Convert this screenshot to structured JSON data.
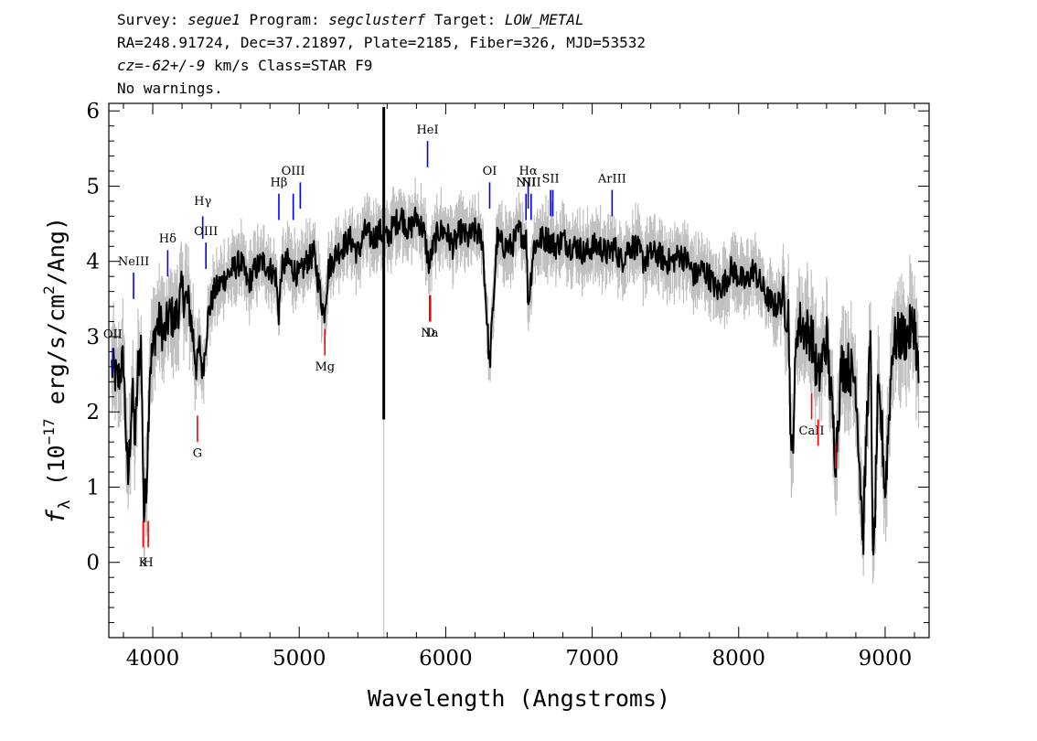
{
  "header": {
    "line1": {
      "survey_label": "Survey:",
      "survey": "segue1",
      "program_label": "Program:",
      "program": "segclusterf",
      "target_label": "Target:",
      "target": "LOW_METAL"
    },
    "line2": "RA=248.91724, Dec=37.21897, Plate=2185, Fiber=326, MJD=53532",
    "line3": {
      "cz": "cz=-62+/-9",
      "rest": " km/s Class=STAR F9"
    },
    "line4": "No warnings."
  },
  "chart_data": {
    "type": "line",
    "xlabel": "Wavelength (Angstroms)",
    "ylabel_parts": {
      "f": "f",
      "sub": "λ",
      "open": " (10",
      "exp": "−17",
      "mid": " erg/s/cm",
      "exp2": "2",
      "close": "/Ang)"
    },
    "xlim": [
      3700,
      9300
    ],
    "ylim": [
      -1.0,
      6.1
    ],
    "x_ticks": [
      4000,
      5000,
      6000,
      7000,
      8000,
      9000
    ],
    "x_tick_labels": [
      "4000",
      "5000",
      "6000",
      "7000",
      "8000",
      "9000"
    ],
    "y_ticks": [
      0,
      1,
      2,
      3,
      4,
      5,
      6
    ],
    "y_tick_labels": [
      "0",
      "1",
      "2",
      "3",
      "4",
      "5",
      "6"
    ],
    "colors": {
      "spectrum": "#000000",
      "error": "#bfbfbf",
      "emission": "#0000ff",
      "absorption": "#ff0000",
      "model": "#000000"
    },
    "series": [
      {
        "role": "spectrum",
        "x": [
          3720,
          3760,
          3800,
          3830,
          3860,
          3880,
          3900,
          3920,
          3940,
          3960,
          3980,
          4000,
          4020,
          4050,
          4080,
          4100,
          4120,
          4150,
          4200,
          4250,
          4300,
          4320,
          4340,
          4380,
          4420,
          4460,
          4500,
          4550,
          4600,
          4650,
          4700,
          4750,
          4800,
          4840,
          4860,
          4880,
          4920,
          4960,
          5000,
          5050,
          5100,
          5150,
          5170,
          5200,
          5250,
          5300,
          5350,
          5400,
          5450,
          5500,
          5550,
          5600,
          5650,
          5700,
          5750,
          5800,
          5850,
          5890,
          5900,
          5950,
          6000,
          6050,
          6100,
          6150,
          6200,
          6250,
          6300,
          6350,
          6400,
          6450,
          6500,
          6550,
          6563,
          6600,
          6650,
          6700,
          6750,
          6800,
          6850,
          6900,
          6950,
          7000,
          7050,
          7100,
          7150,
          7200,
          7250,
          7300,
          7350,
          7400,
          7450,
          7500,
          7550,
          7600,
          7650,
          7700,
          7750,
          7800,
          7850,
          7900,
          7950,
          8000,
          8050,
          8100,
          8150,
          8200,
          8250,
          8300,
          8340,
          8360,
          8400,
          8450,
          8500,
          8542,
          8600,
          8662,
          8700,
          8750,
          8800,
          8850,
          8880,
          8900,
          8920,
          8950,
          8980,
          9000,
          9050,
          9100,
          9150,
          9200,
          9230
        ],
        "y": [
          2.6,
          2.4,
          2.7,
          1.0,
          2.3,
          1.6,
          2.6,
          2.9,
          0.6,
          1.2,
          2.6,
          2.8,
          3.1,
          3.2,
          3.0,
          3.2,
          3.3,
          3.2,
          3.6,
          3.4,
          2.6,
          2.9,
          2.5,
          3.3,
          3.6,
          3.7,
          3.8,
          3.9,
          4.0,
          3.7,
          3.9,
          4.0,
          3.9,
          3.8,
          3.3,
          3.9,
          4.0,
          3.9,
          3.8,
          4.0,
          4.1,
          3.5,
          3.3,
          3.9,
          4.1,
          4.2,
          4.3,
          4.1,
          4.4,
          4.3,
          4.4,
          4.3,
          4.5,
          4.6,
          4.4,
          4.6,
          4.4,
          3.9,
          4.1,
          4.4,
          4.4,
          4.2,
          4.4,
          4.3,
          4.4,
          4.3,
          2.6,
          4.3,
          4.2,
          4.2,
          4.4,
          4.3,
          3.4,
          4.2,
          4.3,
          4.3,
          4.2,
          4.3,
          4.2,
          4.2,
          4.1,
          4.2,
          4.2,
          4.1,
          4.2,
          4.0,
          4.2,
          4.2,
          4.0,
          4.1,
          4.1,
          4.0,
          4.0,
          4.1,
          4.0,
          3.8,
          3.9,
          3.8,
          3.6,
          3.7,
          3.9,
          3.8,
          3.7,
          3.9,
          3.7,
          3.5,
          3.4,
          3.5,
          3.3,
          1.2,
          3.2,
          3.1,
          3.0,
          2.4,
          3.0,
          1.4,
          2.6,
          2.6,
          2.4,
          0.3,
          2.2,
          2.8,
          -0.2,
          2.2,
          1.7,
          0.9,
          2.9,
          3.0,
          3.0,
          3.2,
          2.4
        ]
      }
    ],
    "sky_line": {
      "x": 5577,
      "y_top": 6.05,
      "y_bottom": 1.9
    },
    "emission_lines": [
      {
        "label": "OII",
        "x": 3727,
        "y1": 2.5,
        "y2": 2.85,
        "ly": 2.98
      },
      {
        "label": "NeIII",
        "x": 3869,
        "y1": 3.5,
        "y2": 3.85,
        "ly": 3.95
      },
      {
        "label": "Hδ",
        "x": 4102,
        "y1": 3.8,
        "y2": 4.15,
        "ly": 4.25
      },
      {
        "label": "Hγ",
        "x": 4341,
        "y1": 4.3,
        "y2": 4.6,
        "ly": 4.75
      },
      {
        "label": "OIII",
        "x": 4363,
        "y1": 3.9,
        "y2": 4.25,
        "ly": 4.35
      },
      {
        "label": "Hβ",
        "x": 4861,
        "y1": 4.55,
        "y2": 4.9,
        "ly": 5.0
      },
      {
        "label": "OIII",
        "x": 4959,
        "y1": 4.55,
        "y2": 4.9,
        "ly": 5.15
      },
      {
        "label": "",
        "x": 5007,
        "y1": 4.7,
        "y2": 5.05,
        "ly": 5.15
      },
      {
        "label": "HeI",
        "x": 5876,
        "y1": 5.25,
        "y2": 5.6,
        "ly": 5.7
      },
      {
        "label": "OI",
        "x": 6300,
        "y1": 4.7,
        "y2": 5.05,
        "ly": 5.15
      },
      {
        "label": "NII",
        "x": 6548,
        "y1": 4.55,
        "y2": 4.9,
        "ly": 5.0
      },
      {
        "label": "Hα",
        "x": 6563,
        "y1": 4.7,
        "y2": 5.05,
        "ly": 5.15
      },
      {
        "label": "NII",
        "x": 6583,
        "y1": 4.55,
        "y2": 4.9,
        "ly": 5.0
      },
      {
        "label": "SII",
        "x": 6716,
        "y1": 4.6,
        "y2": 4.95,
        "ly": 5.05
      },
      {
        "label": "",
        "x": 6731,
        "y1": 4.6,
        "y2": 4.95,
        "ly": 5.05
      },
      {
        "label": "ArIII",
        "x": 7136,
        "y1": 4.6,
        "y2": 4.95,
        "ly": 5.05
      }
    ],
    "absorption_lines": [
      {
        "label": "K",
        "x": 3934,
        "y1": 0.55,
        "y2": 0.2,
        "ly": -0.05
      },
      {
        "label": "H",
        "x": 3969,
        "y1": 0.55,
        "y2": 0.2,
        "ly": -0.05
      },
      {
        "label": "G",
        "x": 4305,
        "y1": 1.95,
        "y2": 1.6,
        "ly": 1.4
      },
      {
        "label": "Mg",
        "x": 5175,
        "y1": 3.1,
        "y2": 2.75,
        "ly": 2.55
      },
      {
        "label": "Na",
        "x": 5890,
        "y1": 3.55,
        "y2": 3.2,
        "ly": 3.0
      },
      {
        "label": "D",
        "x": 5896,
        "y1": 3.55,
        "y2": 3.2,
        "ly": 3.0
      },
      {
        "label": "CaII",
        "x": 8498,
        "y1": 2.25,
        "y2": 1.9,
        "ly": 1.7
      },
      {
        "label": "",
        "x": 8542,
        "y1": 1.9,
        "y2": 1.55,
        "ly": 1.7
      },
      {
        "label": "",
        "x": 8662,
        "y1": 1.6,
        "y2": 1.25,
        "ly": 1.7
      }
    ]
  }
}
